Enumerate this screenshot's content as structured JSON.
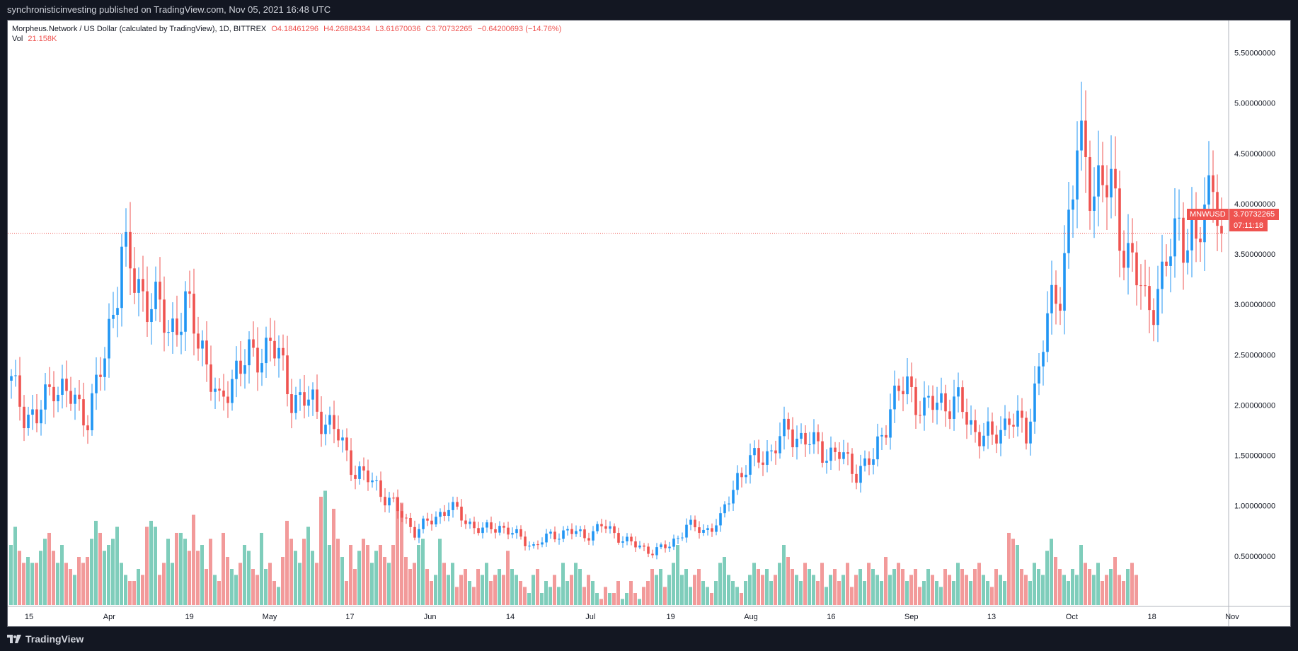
{
  "publish_text": "synchronisticinvesting published on TradingView.com, Nov 05, 2021 16:48 UTC",
  "legend": {
    "title": "Morpheus.Network / US Dollar (calculated by TradingView), 1D, BITTREX",
    "open": "O4.18461296",
    "high": "H4.26884334",
    "low": "L3.61670036",
    "close": "C3.70732265",
    "change": "−0.64200693 (−14.76%)",
    "vol_label": "Vol",
    "vol_value": "21.158K"
  },
  "symbol_tag": "MNWUSD",
  "price_tag": "3.70732265",
  "countdown_tag": "07:11:18",
  "footer_brand": "TradingView",
  "icons": {
    "brand": "tradingview-logo-icon"
  },
  "colors": {
    "background": "#131722",
    "chart_bg": "#ffffff",
    "up": "#2196f3",
    "down": "#ef5350",
    "vol_up": "#7fcdbb",
    "vol_down": "#f29a9a",
    "price_line": "#ef5350"
  },
  "chart_data": {
    "type": "candlestick",
    "y_ticks": [
      "5.50000000",
      "5.00000000",
      "4.50000000",
      "4.00000000",
      "3.50000000",
      "3.00000000",
      "2.50000000",
      "2.00000000",
      "1.50000000",
      "1.00000000",
      "0.50000000"
    ],
    "x_ticks": [
      "15",
      "Apr",
      "19",
      "May",
      "17",
      "Jun",
      "14",
      "Jul",
      "19",
      "Aug",
      "16",
      "Sep",
      "13",
      "Oct",
      "18",
      "Nov"
    ],
    "ylim": [
      0,
      5.75
    ],
    "last_price": 3.70732265,
    "segments": [
      [
        0,
        2.2
      ],
      [
        3,
        1.95
      ],
      [
        6,
        1.85
      ],
      [
        10,
        2.25
      ],
      [
        14,
        2.05
      ],
      [
        18,
        1.9
      ],
      [
        22,
        2.45
      ],
      [
        26,
        3.55
      ],
      [
        29,
        3.2
      ],
      [
        33,
        3.05
      ],
      [
        37,
        2.75
      ],
      [
        41,
        2.95
      ],
      [
        45,
        2.6
      ],
      [
        49,
        1.95
      ],
      [
        53,
        2.4
      ],
      [
        57,
        2.45
      ],
      [
        61,
        2.65
      ],
      [
        66,
        2.1
      ],
      [
        71,
        2.0
      ],
      [
        76,
        1.75
      ],
      [
        81,
        1.35
      ],
      [
        86,
        1.2
      ],
      [
        91,
        0.95
      ],
      [
        95,
        0.75
      ],
      [
        99,
        0.85
      ],
      [
        103,
        1.0
      ],
      [
        107,
        0.85
      ],
      [
        111,
        0.75
      ],
      [
        115,
        0.8
      ],
      [
        119,
        0.7
      ],
      [
        123,
        0.6
      ],
      [
        127,
        0.7
      ],
      [
        131,
        0.75
      ],
      [
        135,
        0.7
      ],
      [
        139,
        0.8
      ],
      [
        143,
        0.7
      ],
      [
        147,
        0.6
      ],
      [
        151,
        0.55
      ],
      [
        155,
        0.6
      ],
      [
        159,
        0.8
      ],
      [
        163,
        0.75
      ],
      [
        167,
        0.85
      ],
      [
        171,
        1.3
      ],
      [
        175,
        1.45
      ],
      [
        179,
        1.55
      ],
      [
        183,
        1.75
      ],
      [
        187,
        1.65
      ],
      [
        191,
        1.55
      ],
      [
        195,
        1.5
      ],
      [
        199,
        1.35
      ],
      [
        203,
        1.45
      ],
      [
        207,
        2.0
      ],
      [
        211,
        2.2
      ],
      [
        215,
        1.95
      ],
      [
        219,
        2.05
      ],
      [
        223,
        2.0
      ],
      [
        227,
        1.75
      ],
      [
        231,
        1.65
      ],
      [
        235,
        1.9
      ],
      [
        239,
        1.7
      ],
      [
        243,
        2.65
      ],
      [
        247,
        3.2
      ],
      [
        251,
        4.5
      ],
      [
        255,
        4.25
      ],
      [
        259,
        4.1
      ],
      [
        263,
        3.5
      ],
      [
        267,
        3.0
      ],
      [
        271,
        3.2
      ],
      [
        275,
        3.85
      ],
      [
        279,
        3.5
      ],
      [
        283,
        4.4
      ],
      [
        285,
        3.71
      ]
    ],
    "volume": [
      0.5,
      0.65,
      0.45,
      0.35,
      0.4,
      0.35,
      0.35,
      0.45,
      0.55,
      0.6,
      0.45,
      0.35,
      0.5,
      0.35,
      0.3,
      0.25,
      0.4,
      0.35,
      0.4,
      0.55,
      0.7,
      0.6,
      0.45,
      0.5,
      0.55,
      0.65,
      0.35,
      0.25,
      0.2,
      0.2,
      0.3,
      0.25,
      0.65,
      0.7,
      0.65,
      0.25,
      0.35,
      0.55,
      0.35,
      0.6,
      0.6,
      0.55,
      0.45,
      0.75,
      0.45,
      0.5,
      0.3,
      0.55,
      0.25,
      0.2,
      0.6,
      0.4,
      0.3,
      0.25,
      0.35,
      0.5,
      0.45,
      0.3,
      0.25,
      0.6,
      0.3,
      0.35,
      0.2,
      0.15,
      0.4,
      0.7,
      0.55,
      0.45,
      0.35,
      0.55,
      0.65,
      0.45,
      0.35,
      0.9,
      0.95,
      0.5,
      0.8,
      0.55,
      0.4,
      0.2,
      0.5,
      0.3,
      0.45,
      0.55,
      0.5,
      0.35,
      0.45,
      0.5,
      0.4,
      0.35,
      0.5,
      0.9,
      0.85,
      0.4,
      0.3,
      0.35,
      0.5,
      0.55,
      0.3,
      0.2,
      0.25,
      0.55,
      0.35,
      0.25,
      0.35,
      0.15,
      0.25,
      0.3,
      0.2,
      0.15,
      0.3,
      0.25,
      0.35,
      0.2,
      0.25,
      0.3,
      0.25,
      0.45,
      0.3,
      0.25,
      0.2,
      0.15,
      0.1,
      0.25,
      0.3,
      0.1,
      0.2,
      0.15,
      0.25,
      0.15,
      0.35,
      0.2,
      0.25,
      0.35,
      0.3,
      0.15,
      0.25,
      0.2,
      0.1,
      0.05,
      0.15,
      0.1,
      0.1,
      0.2,
      0.05,
      0.1,
      0.2,
      0.1,
      0.05,
      0.15,
      0.2,
      0.3,
      0.25,
      0.3,
      0.15,
      0.25,
      0.35,
      0.5,
      0.25,
      0.3,
      0.15,
      0.25,
      0.3,
      0.2,
      0.15,
      0.1,
      0.2,
      0.35,
      0.4,
      0.25,
      0.2,
      0.15,
      0.1,
      0.2,
      0.25,
      0.35,
      0.3,
      0.25,
      0.3,
      0.2,
      0.25,
      0.35,
      0.5,
      0.4,
      0.3,
      0.25,
      0.2,
      0.35,
      0.3,
      0.25,
      0.2,
      0.35,
      0.15,
      0.25,
      0.3,
      0.2,
      0.25,
      0.35,
      0.15,
      0.25,
      0.3,
      0.2,
      0.35,
      0.3,
      0.25,
      0.2,
      0.4,
      0.25,
      0.3,
      0.35,
      0.3,
      0.2,
      0.25,
      0.3,
      0.15,
      0.2,
      0.3,
      0.25,
      0.2,
      0.15,
      0.3,
      0.25,
      0.2,
      0.35,
      0.3,
      0.25,
      0.2,
      0.3,
      0.35,
      0.25,
      0.2,
      0.15,
      0.3,
      0.25,
      0.2,
      0.6,
      0.55,
      0.5,
      0.3,
      0.25,
      0.2,
      0.35,
      0.3,
      0.25,
      0.45,
      0.55,
      0.4,
      0.3,
      0.25,
      0.2,
      0.3,
      0.25,
      0.5,
      0.35,
      0.3,
      0.25,
      0.35,
      0.2,
      0.25,
      0.3,
      0.4,
      0.25,
      0.2,
      0.3,
      0.35,
      0.25
    ]
  }
}
